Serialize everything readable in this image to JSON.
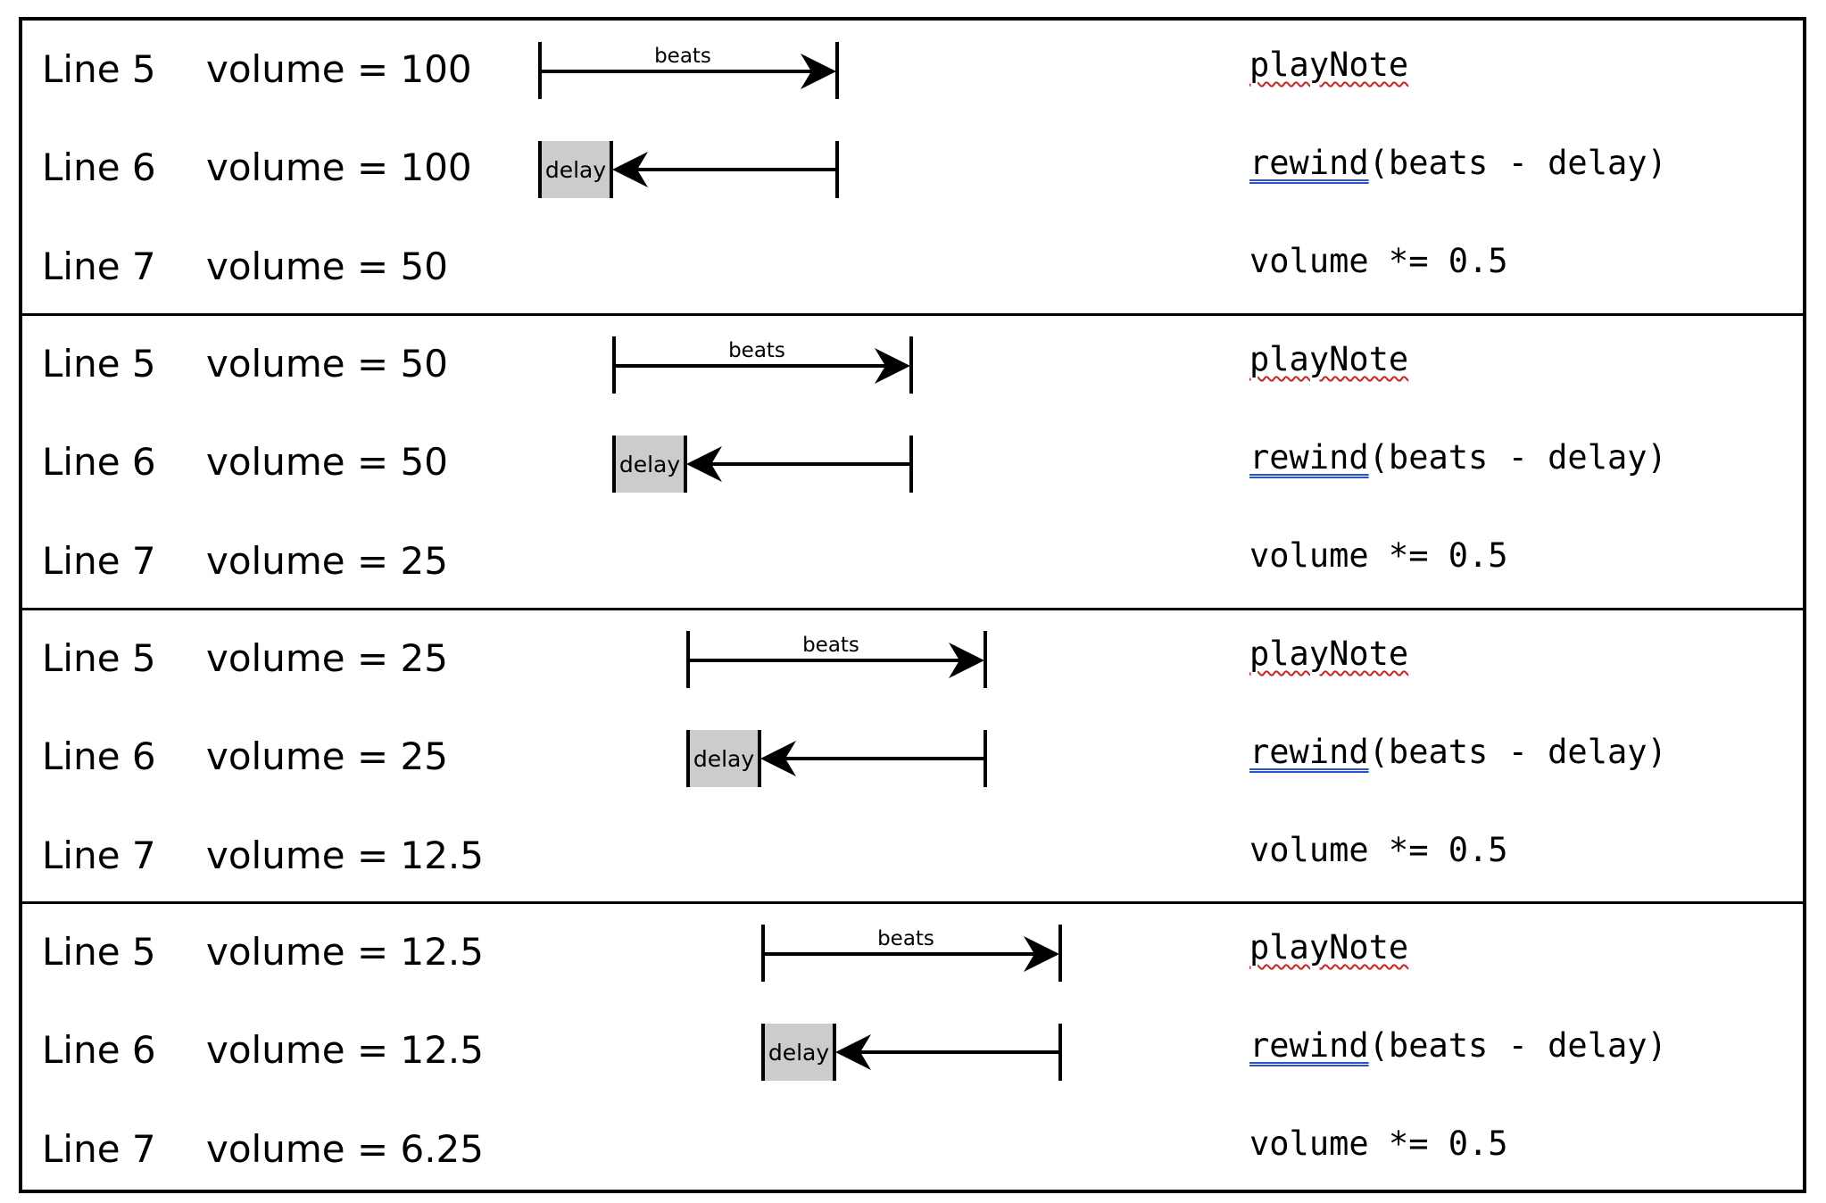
{
  "sections": [
    {
      "rows": [
        {
          "line": "Line 5",
          "volume": "volume = 100",
          "code_a": "playNote",
          "code_b": ""
        },
        {
          "line": "Line 6",
          "volume": "volume = 100",
          "code_a": "rewind",
          "code_b": "(beats - delay)"
        },
        {
          "line": "Line 7",
          "volume": "volume = 50",
          "code_a": "volume *= 0.5",
          "code_b": ""
        }
      ],
      "beats_label": "beats",
      "delay_label": "delay"
    },
    {
      "rows": [
        {
          "line": "Line 5",
          "volume": "volume = 50",
          "code_a": "playNote",
          "code_b": ""
        },
        {
          "line": "Line 6",
          "volume": "volume = 50",
          "code_a": "rewind",
          "code_b": "(beats - delay)"
        },
        {
          "line": "Line 7",
          "volume": "volume = 25",
          "code_a": "volume *= 0.5",
          "code_b": ""
        }
      ],
      "beats_label": "beats",
      "delay_label": "delay"
    },
    {
      "rows": [
        {
          "line": "Line 5",
          "volume": "volume = 25",
          "code_a": "playNote",
          "code_b": ""
        },
        {
          "line": "Line 6",
          "volume": "volume = 25",
          "code_a": "rewind",
          "code_b": "(beats - delay)"
        },
        {
          "line": "Line 7",
          "volume": "volume = 12.5",
          "code_a": "volume *= 0.5",
          "code_b": ""
        }
      ],
      "beats_label": "beats",
      "delay_label": "delay"
    },
    {
      "rows": [
        {
          "line": "Line 5",
          "volume": "volume = 12.5",
          "code_a": "playNote",
          "code_b": ""
        },
        {
          "line": "Line 6",
          "volume": "volume = 12.5",
          "code_a": "rewind",
          "code_b": "(beats - delay)"
        },
        {
          "line": "Line 7",
          "volume": "volume = 6.25",
          "code_a": "volume *= 0.5",
          "code_b": ""
        }
      ],
      "beats_label": "beats",
      "delay_label": "delay"
    }
  ],
  "colors": {
    "border": "#000000",
    "delay_fill": "#cccccc",
    "spell_underline": "#d32020",
    "grammar_underline": "#2a55c8"
  }
}
